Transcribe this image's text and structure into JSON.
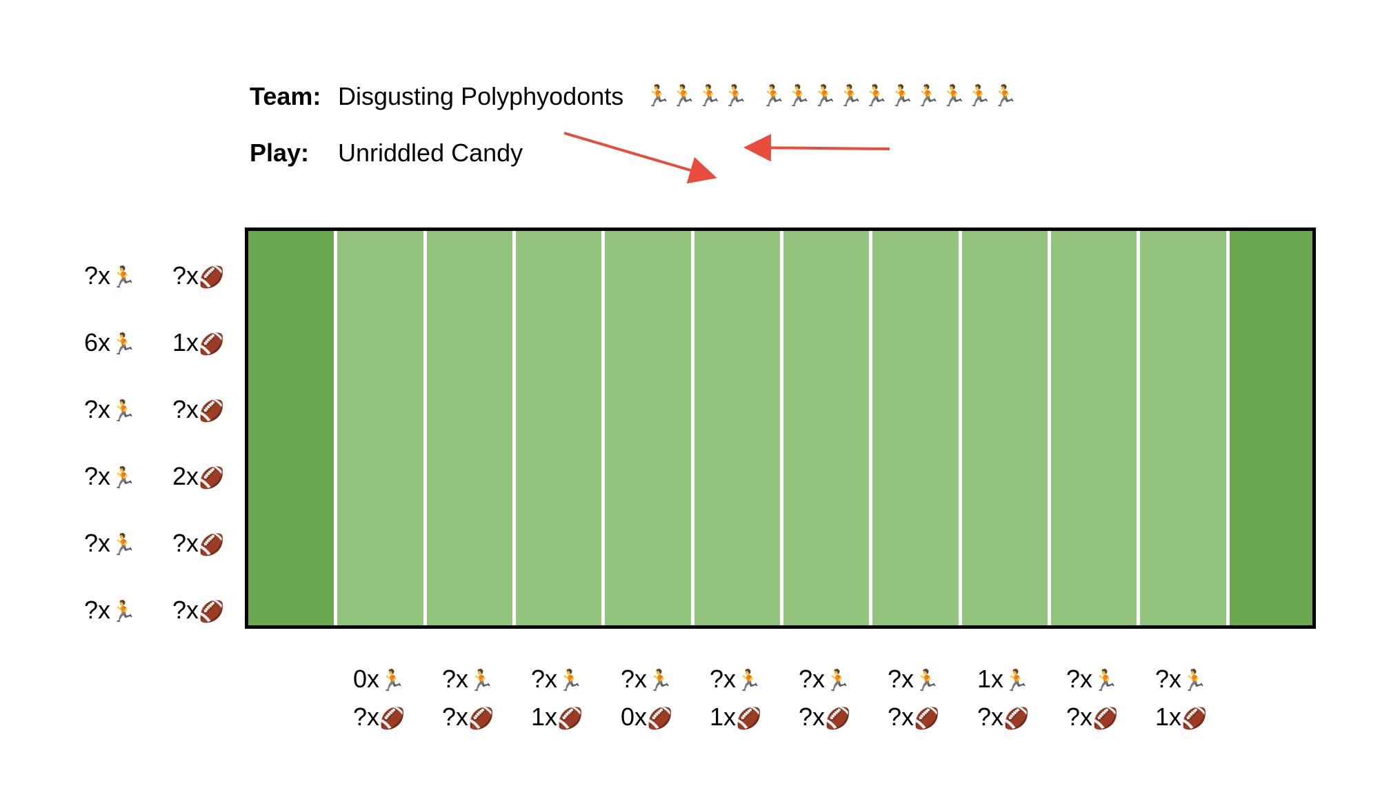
{
  "header": {
    "team_label": "Team:",
    "team_name": "Disgusting Polyphyodonts",
    "runner_group_1": "🏃🏃🏃🏃",
    "runner_group_2": "🏃🏃🏃🏃🏃🏃🏃🏃🏃🏃",
    "play_label": "Play:",
    "play_name": "Unriddled Candy"
  },
  "icons": {
    "runner": "runner-icon",
    "football": "football-icon",
    "runner_glyph": "🏃",
    "football_glyph": "🏈"
  },
  "colors": {
    "field": "#93c47d",
    "endzone": "#6aa84f",
    "yard_line": "#ffffff",
    "border": "#000000",
    "arrow": "#e74c3c"
  },
  "row_clues": [
    {
      "runners": "?",
      "balls": "?"
    },
    {
      "runners": "6",
      "balls": "1"
    },
    {
      "runners": "?",
      "balls": "?"
    },
    {
      "runners": "?",
      "balls": "2"
    },
    {
      "runners": "?",
      "balls": "?"
    },
    {
      "runners": "?",
      "balls": "?"
    }
  ],
  "column_clues": [
    {
      "runners": "0",
      "balls": "?"
    },
    {
      "runners": "?",
      "balls": "?"
    },
    {
      "runners": "?",
      "balls": "1"
    },
    {
      "runners": "?",
      "balls": "0"
    },
    {
      "runners": "?",
      "balls": "1"
    },
    {
      "runners": "?",
      "balls": "?"
    },
    {
      "runners": "?",
      "balls": "?"
    },
    {
      "runners": "1",
      "balls": "?"
    },
    {
      "runners": "?",
      "balls": "?"
    },
    {
      "runners": "?",
      "balls": "1"
    }
  ]
}
